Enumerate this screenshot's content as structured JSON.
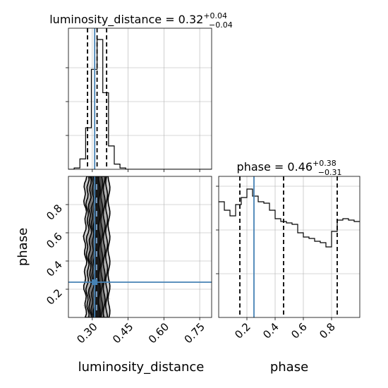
{
  "chart_data": [
    {
      "type": "histogram",
      "panel": "top-left",
      "title": {
        "prefix": "luminosity_distance = 0.32",
        "sup": "+0.04",
        "sub": "−0.04"
      },
      "xlim": [
        0.2,
        0.8
      ],
      "bin_edges": [
        0.2,
        0.224,
        0.248,
        0.272,
        0.296,
        0.32,
        0.344,
        0.368,
        0.392,
        0.416,
        0.44,
        0.464,
        0.488,
        0.512,
        0.536,
        0.56,
        0.584,
        0.608,
        0.632,
        0.656,
        0.68,
        0.704,
        0.728,
        0.752,
        0.776,
        0.8
      ],
      "counts": [
        0,
        0.01,
        0.08,
        0.32,
        0.77,
        1.0,
        0.59,
        0.18,
        0.04,
        0.01,
        0,
        0,
        0,
        0,
        0,
        0,
        0,
        0,
        0,
        0,
        0,
        0,
        0,
        0,
        0
      ],
      "quantile_lines": [
        0.28,
        0.32,
        0.36
      ],
      "truth": 0.31,
      "grid": true
    },
    {
      "type": "histogram",
      "panel": "bottom-right",
      "title": {
        "prefix": "phase = 0.46",
        "sup": "+0.38",
        "sub": "−0.31"
      },
      "xlim": [
        0.0,
        1.0
      ],
      "bin_edges": [
        0.0,
        0.04,
        0.08,
        0.12,
        0.16,
        0.2,
        0.24,
        0.28,
        0.32,
        0.36,
        0.4,
        0.44,
        0.48,
        0.52,
        0.56,
        0.6,
        0.64,
        0.68,
        0.72,
        0.76,
        0.8,
        0.84,
        0.88,
        0.92,
        0.96,
        1.0
      ],
      "counts": [
        0.82,
        0.76,
        0.72,
        0.8,
        0.85,
        0.91,
        0.86,
        0.82,
        0.81,
        0.76,
        0.7,
        0.68,
        0.67,
        0.66,
        0.6,
        0.57,
        0.56,
        0.54,
        0.53,
        0.5,
        0.61,
        0.69,
        0.7,
        0.69,
        0.68
      ],
      "ylim_top": 1.0,
      "quantile_lines": [
        0.15,
        0.46,
        0.84
      ],
      "truth": 0.25,
      "x_ticks": [
        0.2,
        0.4,
        0.6,
        0.8
      ],
      "x_tick_labels": [
        "0.2",
        "0.4",
        "0.6",
        "0.8"
      ],
      "xlabel": "phase",
      "grid": true
    },
    {
      "type": "scatter_density",
      "panel": "bottom-left",
      "xlim": [
        0.2,
        0.8
      ],
      "ylim": [
        0.0,
        1.0
      ],
      "x_ticks": [
        0.3,
        0.45,
        0.6,
        0.75
      ],
      "x_tick_labels": [
        "0.30",
        "0.45",
        "0.60",
        "0.75"
      ],
      "y_ticks": [
        0.2,
        0.4,
        0.6,
        0.8
      ],
      "y_tick_labels": [
        "0.2",
        "0.4",
        "0.6",
        "0.8"
      ],
      "xlabel": "luminosity_distance",
      "ylabel": "phase",
      "x_center": 0.32,
      "x_spread": 0.02,
      "truth": {
        "x": 0.31,
        "y": 0.25
      },
      "grid": true
    }
  ],
  "colors": {
    "truth": "#4682b4",
    "hist": "#000000",
    "quantile": "#000000",
    "grid": "#b0b0b0",
    "points": "#8a8a8a",
    "density_dark": "#000000",
    "density_mid": "#777777",
    "density_light": "#c8c8c8"
  }
}
